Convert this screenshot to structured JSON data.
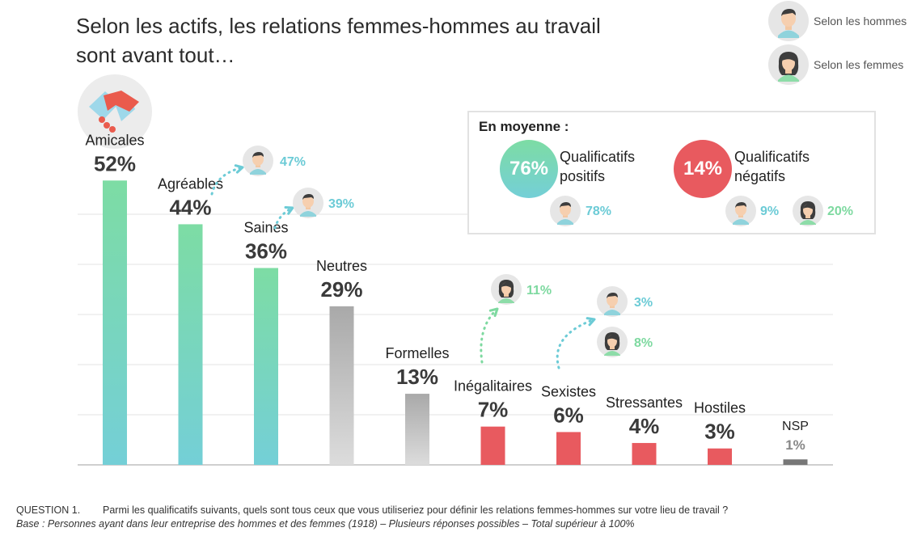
{
  "title_line1": "Selon les actifs, les relations femmes-hommes au travail",
  "title_line2": "sont avant tout…",
  "legend": [
    {
      "icon": "man-avatar-icon",
      "label": "Selon les hommes"
    },
    {
      "icon": "woman-avatar-icon",
      "label": "Selon les femmes"
    }
  ],
  "average_box": {
    "title": "En moyenne :",
    "positive": {
      "value": "76%",
      "label_line1": "Qualificatifs",
      "label_line2": "positifs",
      "men": "78%"
    },
    "negative": {
      "value": "14%",
      "label_line1": "Qualificatifs",
      "label_line2": "négatifs",
      "men": "9%",
      "women": "20%"
    }
  },
  "colors": {
    "positive_top": "#7ddca4",
    "positive_bottom": "#74cfd7",
    "neutral_top": "#a9a9a9",
    "neutral_bottom": "#dcdcdc",
    "negative": "#e85a5f",
    "nsp": "#777777",
    "men_text": "#6ccbd6",
    "women_text": "#7ed9a0"
  },
  "chart_data": {
    "type": "bar",
    "ylim": [
      0,
      55
    ],
    "grid": true,
    "categories": [
      "Amicales",
      "Agréables",
      "Saines",
      "Neutres",
      "Formelles",
      "Inégalitaires",
      "Sexistes",
      "Stressantes",
      "Hostiles",
      "NSP"
    ],
    "values": [
      52,
      44,
      36,
      29,
      13,
      7,
      6,
      4,
      3,
      1
    ],
    "value_labels": [
      "52%",
      "44%",
      "36%",
      "29%",
      "13%",
      "7%",
      "6%",
      "4%",
      "3%",
      "1%"
    ],
    "groups": [
      "positive",
      "positive",
      "positive",
      "neutral",
      "neutral",
      "negative",
      "negative",
      "negative",
      "negative",
      "nsp"
    ],
    "annotations": [
      {
        "category": "Agréables",
        "who": "men",
        "value": "47%"
      },
      {
        "category": "Saines",
        "who": "men",
        "value": "39%"
      },
      {
        "category": "Inégalitaires",
        "who": "women",
        "value": "11%"
      },
      {
        "category": "Sexistes",
        "who": "men",
        "value": "3%"
      },
      {
        "category": "Sexistes",
        "who": "women",
        "value": "8%"
      }
    ]
  },
  "footer": {
    "question_number": "QUESTION 1.",
    "question_text": "Parmi les qualificatifs suivants, quels sont tous ceux que vous utiliseriez pour définir les relations femmes-hommes sur votre lieu de travail ?",
    "base": "Base : Personnes ayant dans leur entreprise des hommes et des femmes (1918) – Plusieurs réponses possibles – Total supérieur à 100%"
  }
}
